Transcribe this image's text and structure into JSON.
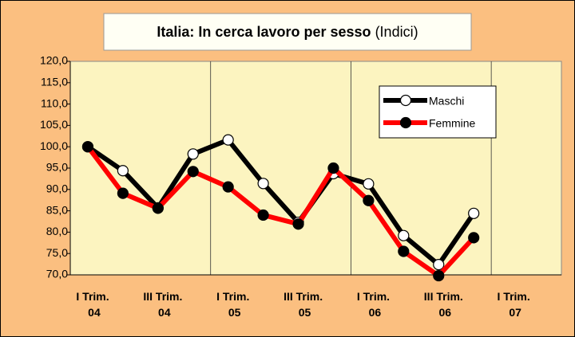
{
  "chart_data": {
    "type": "line",
    "title": "Italia: In cerca lavoro per sesso",
    "subtitle": "(Indici)",
    "categories": [
      "I Trim. 04",
      null,
      "III Trim. 04",
      null,
      "I Trim. 05",
      null,
      "III Trim. 05",
      null,
      "I Trim. 06",
      null,
      "III Trim. 06",
      null,
      "I Trim. 07",
      null
    ],
    "series": [
      {
        "name": "Maschi",
        "color": "#000000",
        "marker": "#ffffff",
        "values": [
          100,
          94.4,
          85.7,
          98.3,
          101.6,
          91.4,
          82.3,
          93.7,
          91.3,
          79.2,
          72.4,
          84.4,
          null,
          null
        ]
      },
      {
        "name": "Femmine",
        "color": "#ff0000",
        "marker": "#000000",
        "values": [
          100,
          89.1,
          85.6,
          94.2,
          90.6,
          84.0,
          81.9,
          95.0,
          87.4,
          75.5,
          69.8,
          78.7,
          null,
          null
        ]
      }
    ],
    "ylim": [
      70,
      120
    ],
    "yticks": [
      {
        "value": 70,
        "label": "70,0"
      },
      {
        "value": 75,
        "label": "75,0"
      },
      {
        "value": 80,
        "label": "80,0"
      },
      {
        "value": 85,
        "label": "85,0"
      },
      {
        "value": 90,
        "label": "90,0"
      },
      {
        "value": 95,
        "label": "95,0"
      },
      {
        "value": 100,
        "label": "100,0"
      },
      {
        "value": 105,
        "label": "105,0"
      },
      {
        "value": 110,
        "label": "110,0"
      },
      {
        "value": 115,
        "label": "115,0"
      },
      {
        "value": 120,
        "label": "120,0"
      }
    ],
    "grid": false,
    "legend": "upper right"
  }
}
